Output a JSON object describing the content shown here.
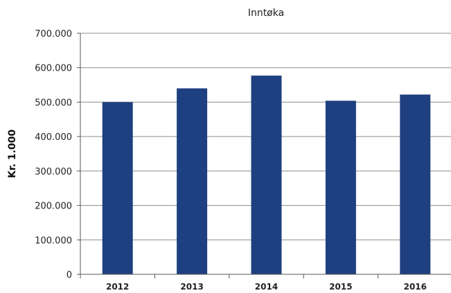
{
  "chart_data": {
    "type": "bar",
    "title": "Inntøka",
    "xlabel": "",
    "ylabel": "Kr. 1.000",
    "categories": [
      "2012",
      "2013",
      "2014",
      "2015",
      "2016"
    ],
    "values": [
      500000,
      540000,
      577000,
      504000,
      522000
    ],
    "ylim": [
      0,
      700000
    ],
    "yticks": [
      "0",
      "100.000",
      "200.000",
      "300.000",
      "400.000",
      "500.000",
      "600.000",
      "700.000"
    ],
    "grid": true,
    "legend": "none",
    "bar_color": "#1f4080",
    "grid_color": "#8c8c8c"
  }
}
